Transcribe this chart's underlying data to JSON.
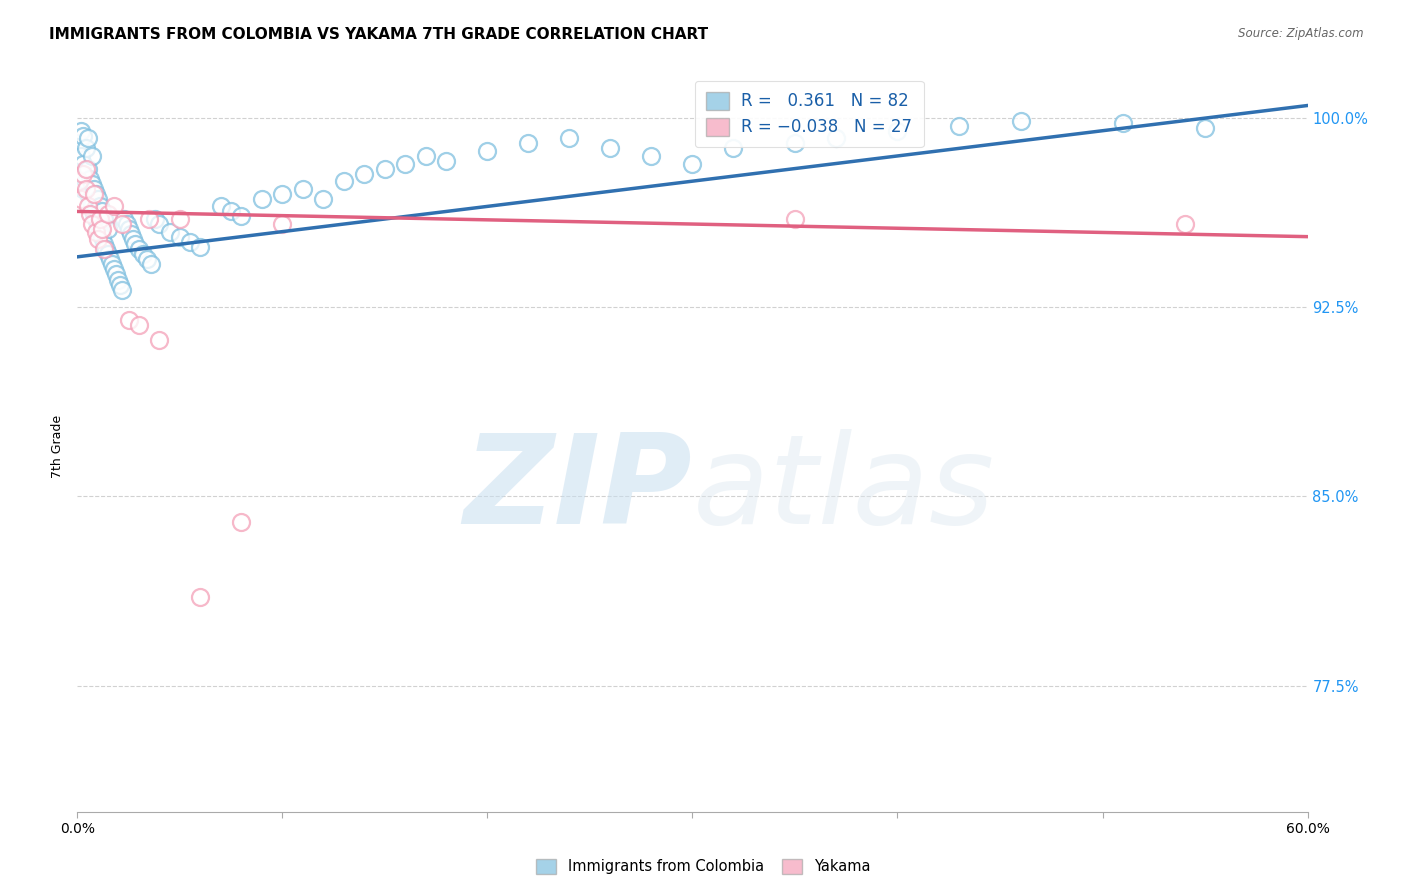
{
  "title": "IMMIGRANTS FROM COLOMBIA VS YAKAMA 7TH GRADE CORRELATION CHART",
  "source": "Source: ZipAtlas.com",
  "ylabel": "7th Grade",
  "ytick_labels": [
    "100.0%",
    "92.5%",
    "85.0%",
    "77.5%"
  ],
  "ytick_values": [
    1.0,
    0.925,
    0.85,
    0.775
  ],
  "xlim": [
    0.0,
    0.6
  ],
  "ylim": [
    0.725,
    1.015
  ],
  "legend_blue_label": "Immigrants from Colombia",
  "legend_pink_label": "Yakama",
  "R_blue": 0.361,
  "N_blue": 82,
  "R_pink": -0.038,
  "N_pink": 27,
  "blue_color": "#7fbfdf",
  "pink_color": "#f4a0b8",
  "trendline_blue_color": "#3070b0",
  "trendline_pink_color": "#e06080",
  "watermark_zip": "ZIP",
  "watermark_atlas": "atlas",
  "trendline_blue_x0": 0.0,
  "trendline_blue_y0": 0.945,
  "trendline_blue_x1": 0.6,
  "trendline_blue_y1": 1.005,
  "trendline_pink_x0": 0.0,
  "trendline_pink_y0": 0.963,
  "trendline_pink_x1": 0.6,
  "trendline_pink_y1": 0.953,
  "blue_x": [
    0.001,
    0.001,
    0.002,
    0.002,
    0.003,
    0.003,
    0.003,
    0.004,
    0.004,
    0.005,
    0.005,
    0.005,
    0.006,
    0.006,
    0.007,
    0.007,
    0.007,
    0.008,
    0.008,
    0.009,
    0.009,
    0.01,
    0.01,
    0.011,
    0.011,
    0.012,
    0.012,
    0.013,
    0.013,
    0.014,
    0.015,
    0.015,
    0.016,
    0.017,
    0.018,
    0.019,
    0.02,
    0.021,
    0.022,
    0.023,
    0.024,
    0.025,
    0.026,
    0.027,
    0.028,
    0.03,
    0.032,
    0.034,
    0.036,
    0.038,
    0.04,
    0.045,
    0.05,
    0.055,
    0.06,
    0.07,
    0.075,
    0.08,
    0.09,
    0.1,
    0.11,
    0.12,
    0.13,
    0.14,
    0.15,
    0.16,
    0.17,
    0.18,
    0.2,
    0.22,
    0.24,
    0.26,
    0.28,
    0.3,
    0.32,
    0.35,
    0.37,
    0.4,
    0.43,
    0.46,
    0.51,
    0.55
  ],
  "blue_y": [
    0.99,
    0.978,
    0.985,
    0.995,
    0.972,
    0.982,
    0.993,
    0.975,
    0.988,
    0.97,
    0.98,
    0.992,
    0.968,
    0.976,
    0.965,
    0.974,
    0.985,
    0.962,
    0.972,
    0.96,
    0.97,
    0.958,
    0.968,
    0.955,
    0.965,
    0.953,
    0.963,
    0.95,
    0.96,
    0.948,
    0.946,
    0.956,
    0.944,
    0.942,
    0.94,
    0.938,
    0.936,
    0.934,
    0.932,
    0.96,
    0.958,
    0.956,
    0.954,
    0.952,
    0.95,
    0.948,
    0.946,
    0.944,
    0.942,
    0.96,
    0.958,
    0.955,
    0.953,
    0.951,
    0.949,
    0.965,
    0.963,
    0.961,
    0.968,
    0.97,
    0.972,
    0.968,
    0.975,
    0.978,
    0.98,
    0.982,
    0.985,
    0.983,
    0.987,
    0.99,
    0.992,
    0.988,
    0.985,
    0.982,
    0.988,
    0.99,
    0.992,
    0.995,
    0.997,
    0.999,
    0.998,
    0.996
  ],
  "pink_x": [
    0.001,
    0.002,
    0.003,
    0.004,
    0.004,
    0.005,
    0.006,
    0.007,
    0.008,
    0.009,
    0.01,
    0.011,
    0.012,
    0.013,
    0.015,
    0.018,
    0.022,
    0.025,
    0.03,
    0.035,
    0.04,
    0.05,
    0.06,
    0.08,
    0.1,
    0.35,
    0.54
  ],
  "pink_y": [
    0.975,
    0.968,
    0.978,
    0.972,
    0.98,
    0.965,
    0.962,
    0.958,
    0.97,
    0.955,
    0.952,
    0.96,
    0.956,
    0.948,
    0.962,
    0.965,
    0.958,
    0.92,
    0.918,
    0.96,
    0.912,
    0.96,
    0.81,
    0.84,
    0.958,
    0.96,
    0.958
  ]
}
